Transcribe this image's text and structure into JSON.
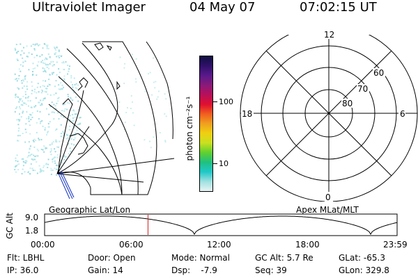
{
  "header": {
    "instrument": "Ultraviolet Imager",
    "date": "04 May 07",
    "time": "07:02:15 UT"
  },
  "colorbar": {
    "unit_label": "photon cm⁻²s⁻¹",
    "ticks": [
      "100",
      "10"
    ],
    "scale": "log",
    "colors": [
      "#101040",
      "#30106a",
      "#5a1a8a",
      "#8a1a7a",
      "#b8105a",
      "#e01030",
      "#f06020",
      "#f0a020",
      "#f0d010",
      "#c8e020",
      "#60d030",
      "#20c080",
      "#20c8c8",
      "#a0e0e0",
      "#e8f4f4"
    ]
  },
  "polar_plot": {
    "mlt_labels": [
      "12",
      "18",
      "6",
      "0"
    ],
    "lat_labels": [
      "60",
      "70",
      "80"
    ]
  },
  "timeline": {
    "left_label": "Geographic Lat/Lon",
    "right_label": "Apex MLat/MLT",
    "axis_label": "GC Alt",
    "y_ticks": [
      "9.0",
      "1.8"
    ],
    "x_ticks": [
      "00:00",
      "06:00",
      "12:00",
      "18:00",
      "23:59"
    ],
    "current_time_marker_hours": 7.04,
    "marker_color": "#d02020"
  },
  "status": {
    "filter": "Flt: LBHL",
    "ip": "IP: 36.0",
    "door": "Door: Open",
    "gain": "Gain: 14",
    "mode": "Mode: Normal",
    "dsp": "Dsp:    -7.9",
    "gc_alt": "GC Alt: 5.7 Re",
    "seq": "Seq: 39",
    "glat": "GLat: -65.3",
    "glon": "GLon: 329.8"
  }
}
